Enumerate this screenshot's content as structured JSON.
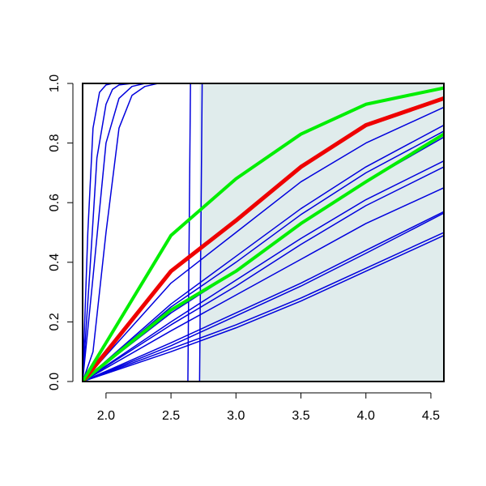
{
  "chart_data": {
    "type": "line",
    "xlim": [
      1.82,
      4.6
    ],
    "ylim": [
      0,
      1
    ],
    "xticks": [
      {
        "value": 2,
        "label": "2.0"
      },
      {
        "value": 2.5,
        "label": "2.5"
      },
      {
        "value": 3,
        "label": "3.0"
      },
      {
        "value": 3.5,
        "label": "3.5"
      },
      {
        "value": 4,
        "label": "4.0"
      },
      {
        "value": 4.5,
        "label": "4.5"
      }
    ],
    "yticks": [
      {
        "value": 0,
        "label": "0.0"
      },
      {
        "value": 0.2,
        "label": "0.2"
      },
      {
        "value": 0.4,
        "label": "0.4"
      },
      {
        "value": 0.6,
        "label": "0.6"
      },
      {
        "value": 0.8,
        "label": "0.8"
      },
      {
        "value": 1,
        "label": "1.0"
      }
    ],
    "shaded_region": {
      "x": [
        2.72,
        4.6
      ],
      "color": "#e0ecec"
    },
    "series": [
      {
        "color": "#0000dd",
        "line_width": 1.5,
        "x": [
          1.82,
          1.86,
          1.9,
          1.95,
          2.0,
          2.05,
          2.1,
          4.6
        ],
        "values": [
          0,
          0.5,
          0.85,
          0.97,
          0.995,
          1,
          1,
          1
        ]
      },
      {
        "color": "#0000dd",
        "line_width": 1.5,
        "x": [
          1.82,
          1.88,
          1.93,
          2.0,
          2.05,
          2.1,
          2.2,
          4.6
        ],
        "values": [
          0,
          0.4,
          0.75,
          0.93,
          0.98,
          0.995,
          1,
          1
        ]
      },
      {
        "color": "#0000dd",
        "line_width": 1.5,
        "x": [
          1.82,
          1.9,
          2.0,
          2.1,
          2.2,
          2.3,
          4.6
        ],
        "values": [
          0,
          0.35,
          0.8,
          0.95,
          0.99,
          1,
          1
        ]
      },
      {
        "color": "#0000dd",
        "line_width": 1.5,
        "x": [
          1.82,
          1.9,
          2.0,
          2.1,
          2.2,
          2.3,
          2.4,
          4.6
        ],
        "values": [
          0,
          0.1,
          0.5,
          0.85,
          0.96,
          0.99,
          1,
          1
        ]
      },
      {
        "color": "#0000dd",
        "line_width": 1.5,
        "x": [
          1.82,
          2.63,
          2.65,
          4.6
        ],
        "values": [
          0,
          0,
          1,
          1
        ]
      },
      {
        "color": "#0000dd",
        "line_width": 1.5,
        "x": [
          1.82,
          2.72,
          2.74,
          4.6
        ],
        "values": [
          0,
          0,
          1,
          1
        ]
      },
      {
        "color": "#0000dd",
        "line_width": 1.5,
        "x": [
          1.82,
          2.5,
          3.0,
          3.5,
          4.0,
          4.6
        ],
        "values": [
          0,
          0.33,
          0.5,
          0.67,
          0.8,
          0.92
        ]
      },
      {
        "color": "#0000dd",
        "line_width": 1.5,
        "x": [
          1.82,
          2.5,
          3.0,
          3.5,
          4.0,
          4.6
        ],
        "values": [
          0,
          0.26,
          0.42,
          0.58,
          0.72,
          0.86
        ]
      },
      {
        "color": "#0000dd",
        "line_width": 1.5,
        "x": [
          1.82,
          2.5,
          3.0,
          3.5,
          4.0,
          4.6
        ],
        "values": [
          0,
          0.25,
          0.4,
          0.56,
          0.7,
          0.84
        ]
      },
      {
        "color": "#0000dd",
        "line_width": 1.5,
        "x": [
          1.82,
          2.5,
          3.0,
          3.5,
          4.0,
          4.6
        ],
        "values": [
          0,
          0.23,
          0.37,
          0.53,
          0.67,
          0.82
        ]
      },
      {
        "color": "#0000dd",
        "line_width": 1.5,
        "x": [
          1.82,
          2.5,
          3.0,
          3.5,
          4.0,
          4.6
        ],
        "values": [
          0,
          0.2,
          0.34,
          0.48,
          0.61,
          0.74
        ]
      },
      {
        "color": "#0000dd",
        "line_width": 1.5,
        "x": [
          1.82,
          2.5,
          3.0,
          3.5,
          4.0,
          4.6
        ],
        "values": [
          0,
          0.19,
          0.32,
          0.46,
          0.59,
          0.72
        ]
      },
      {
        "color": "#0000dd",
        "line_width": 1.5,
        "x": [
          1.82,
          2.5,
          3.0,
          3.5,
          4.0,
          4.6
        ],
        "values": [
          0,
          0.17,
          0.29,
          0.41,
          0.53,
          0.65
        ]
      },
      {
        "color": "#0000dd",
        "line_width": 1.5,
        "x": [
          1.82,
          2.5,
          3.0,
          3.5,
          4.0,
          4.6
        ],
        "values": [
          0,
          0.13,
          0.23,
          0.33,
          0.44,
          0.57
        ]
      },
      {
        "color": "#0000dd",
        "line_width": 1.5,
        "x": [
          1.82,
          2.5,
          3.0,
          3.5,
          4.0,
          4.6
        ],
        "values": [
          0,
          0.12,
          0.22,
          0.32,
          0.43,
          0.565
        ]
      },
      {
        "color": "#0000dd",
        "line_width": 1.5,
        "x": [
          1.82,
          2.5,
          3.0,
          3.5,
          4.0,
          4.6
        ],
        "values": [
          0,
          0.11,
          0.19,
          0.28,
          0.38,
          0.5
        ]
      },
      {
        "color": "#0000dd",
        "line_width": 1.5,
        "x": [
          1.82,
          2.5,
          3.0,
          3.5,
          4.0,
          4.6
        ],
        "values": [
          0,
          0.1,
          0.18,
          0.27,
          0.37,
          0.49
        ]
      },
      {
        "color": "#00ee00",
        "line_width": 4,
        "x": [
          1.82,
          2.5,
          3.0,
          3.5,
          4.0,
          4.6
        ],
        "values": [
          0,
          0.24,
          0.37,
          0.53,
          0.67,
          0.83
        ]
      },
      {
        "color": "#ee0000",
        "line_width": 5,
        "x": [
          1.82,
          2.5,
          3.0,
          3.5,
          4.0,
          4.6
        ],
        "values": [
          0,
          0.37,
          0.54,
          0.72,
          0.86,
          0.95
        ]
      },
      {
        "color": "#00ee00",
        "line_width": 4,
        "x": [
          1.82,
          2.5,
          3.0,
          3.5,
          4.0,
          4.6
        ],
        "values": [
          0,
          0.49,
          0.68,
          0.83,
          0.93,
          0.985
        ]
      }
    ]
  }
}
